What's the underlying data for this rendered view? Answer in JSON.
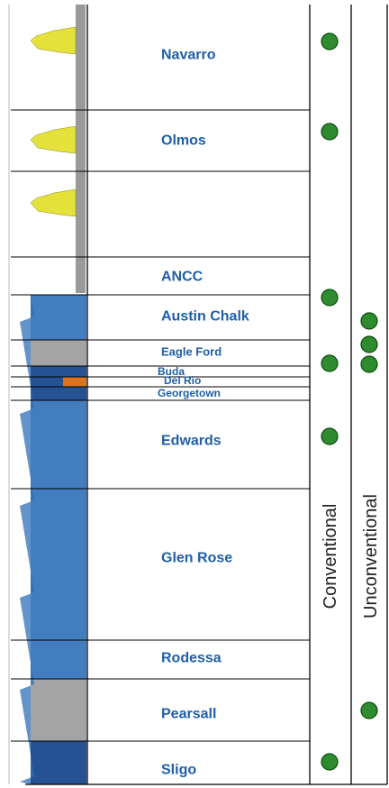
{
  "formations": [
    {
      "name": "Navarro",
      "conventional": true,
      "unconventional": false
    },
    {
      "name": "Olmos",
      "conventional": true,
      "unconventional": false
    },
    {
      "name": "",
      "conventional": false,
      "unconventional": false
    },
    {
      "name": "ANCC",
      "conventional": false,
      "unconventional": false
    },
    {
      "name": "Austin Chalk",
      "conventional": true,
      "unconventional": true
    },
    {
      "name": "Eagle Ford",
      "conventional": false,
      "unconventional": true
    },
    {
      "name": "Buda",
      "conventional": true,
      "unconventional": true
    },
    {
      "name": "Del Rio",
      "conventional": false,
      "unconventional": false
    },
    {
      "name": "Georgetown",
      "conventional": false,
      "unconventional": false
    },
    {
      "name": "Edwards",
      "conventional": true,
      "unconventional": false
    },
    {
      "name": "Glen Rose",
      "conventional": false,
      "unconventional": false
    },
    {
      "name": "Rodessa",
      "conventional": false,
      "unconventional": false
    },
    {
      "name": "Pearsall",
      "conventional": false,
      "unconventional": true
    },
    {
      "name": "Sligo",
      "conventional": true,
      "unconventional": false
    }
  ],
  "columns": {
    "conventional": "Conventional",
    "unconventional": "Unconventional"
  },
  "colors": {
    "label": "#1f5fa8",
    "marker": "#2e8b2e",
    "marker_edge": "#0b4d0b",
    "log_blue": "#2d6fb8",
    "log_dark_blue": "#0d3f8a",
    "log_gray": "#9a9a9a",
    "log_yellow": "#e4e23a",
    "log_orange": "#d9731d"
  }
}
